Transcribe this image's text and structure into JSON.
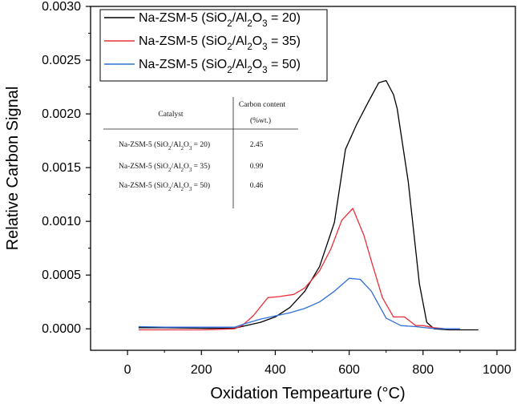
{
  "chart_data": {
    "type": "line",
    "xlabel": "Oxidation Tempearture (°C)",
    "ylabel": "Relative Carbon Signal",
    "xlim": [
      -100,
      1050
    ],
    "ylim": [
      -0.0002,
      0.003
    ],
    "x_ticks": [
      0,
      200,
      400,
      600,
      800,
      1000
    ],
    "x_tick_labels": [
      "0",
      "200",
      "400",
      "600",
      "800",
      "1000"
    ],
    "y_ticks": [
      0,
      0.0005,
      0.001,
      0.0015,
      0.002,
      0.0025,
      0.003
    ],
    "y_tick_labels": [
      "0.0000",
      "0.0005",
      "0.0010",
      "0.0015",
      "0.0020",
      "0.0025",
      "0.0030"
    ],
    "grid": false,
    "legend_position": "top-left",
    "series": [
      {
        "name": "Na-ZSM-5 (SiO2/Al2O3 = 20)",
        "color": "#000000",
        "points": [
          [
            30,
            1e-05
          ],
          [
            100,
            1e-05
          ],
          [
            200,
            5e-06
          ],
          [
            290,
            5e-06
          ],
          [
            320,
            3e-05
          ],
          [
            360,
            6e-05
          ],
          [
            400,
            0.00011
          ],
          [
            440,
            0.0002
          ],
          [
            480,
            0.00035
          ],
          [
            520,
            0.00058
          ],
          [
            560,
            0.00099
          ],
          [
            590,
            0.00167
          ],
          [
            620,
            0.0019
          ],
          [
            650,
            0.0021
          ],
          [
            680,
            0.00229
          ],
          [
            700,
            0.00231
          ],
          [
            720,
            0.00218
          ],
          [
            730,
            0.00205
          ],
          [
            760,
            0.00137
          ],
          [
            790,
            0.00042
          ],
          [
            810,
            6e-05
          ],
          [
            830,
            0.0
          ],
          [
            870,
            -1e-05
          ],
          [
            950,
            -1e-05
          ]
        ]
      },
      {
        "name": "Na-ZSM-5 (SiO2/Al2O3 = 35)",
        "color": "#e8303a",
        "points": [
          [
            30,
            -1e-05
          ],
          [
            100,
            -1e-05
          ],
          [
            200,
            -1e-05
          ],
          [
            290,
            0.0
          ],
          [
            310,
            3e-05
          ],
          [
            340,
            0.00012
          ],
          [
            380,
            0.00029
          ],
          [
            410,
            0.0003
          ],
          [
            450,
            0.00032
          ],
          [
            480,
            0.00038
          ],
          [
            520,
            0.00054
          ],
          [
            550,
            0.00074
          ],
          [
            580,
            0.00101
          ],
          [
            610,
            0.00112
          ],
          [
            640,
            0.00087
          ],
          [
            660,
            0.00063
          ],
          [
            690,
            0.00029
          ],
          [
            720,
            0.00011
          ],
          [
            750,
            0.00011
          ],
          [
            780,
            3e-05
          ],
          [
            800,
            3e-05
          ],
          [
            830,
            1e-05
          ],
          [
            860,
            0.0
          ]
        ]
      },
      {
        "name": "Na-ZSM-5 (SiO2/Al2O3 = 50)",
        "color": "#2f6fd8",
        "points": [
          [
            30,
            2e-05
          ],
          [
            100,
            1.5e-05
          ],
          [
            200,
            1.5e-05
          ],
          [
            290,
            1.5e-05
          ],
          [
            320,
            5e-05
          ],
          [
            360,
            9e-05
          ],
          [
            400,
            0.00012
          ],
          [
            440,
            0.00015
          ],
          [
            480,
            0.00019
          ],
          [
            520,
            0.00025
          ],
          [
            560,
            0.00035
          ],
          [
            600,
            0.00047
          ],
          [
            630,
            0.00046
          ],
          [
            660,
            0.00035
          ],
          [
            700,
            0.0001
          ],
          [
            740,
            3e-05
          ],
          [
            780,
            2e-05
          ],
          [
            820,
            5e-06
          ],
          [
            860,
            0.0
          ],
          [
            900,
            0.0
          ]
        ]
      }
    ],
    "legend": [
      {
        "prefix": "Na-ZSM-5 (SiO",
        "sub1": "2",
        "mid": "/Al",
        "sub2": "2",
        "mid2": "O",
        "sub3": "3",
        "suffix": " = 20)"
      },
      {
        "prefix": "Na-ZSM-5 (SiO",
        "sub1": "2",
        "mid": "/Al",
        "sub2": "2",
        "mid2": "O",
        "sub3": "3",
        "suffix": " = 35)"
      },
      {
        "prefix": "Na-ZSM-5 (SiO",
        "sub1": "2",
        "mid": "/Al",
        "sub2": "2",
        "mid2": "O",
        "sub3": "3",
        "suffix": " = 50)"
      }
    ],
    "inset_table": {
      "headers": [
        "Catalyst",
        "Carbon content",
        "(%wt.)"
      ],
      "rows": [
        {
          "prefix": "Na-ZSM-5 (SiO",
          "sub1": "2",
          "mid": "/Al",
          "sub2": "2",
          "mid2": "O",
          "sub3": "3",
          "suffix": " = 20)",
          "value": "2.45"
        },
        {
          "prefix": "Na-ZSM-5 (SiO",
          "sub1": "2",
          "mid": "/Al",
          "sub2": "2",
          "mid2": "O",
          "sub3": "3",
          "suffix": " = 35)",
          "value": "0.99"
        },
        {
          "prefix": "Na-ZSM-5 (SiO",
          "sub1": "2",
          "mid": "/Al",
          "sub2": "2",
          "mid2": "O",
          "sub3": "3",
          "suffix": " = 50)",
          "value": "0.46"
        }
      ]
    }
  }
}
